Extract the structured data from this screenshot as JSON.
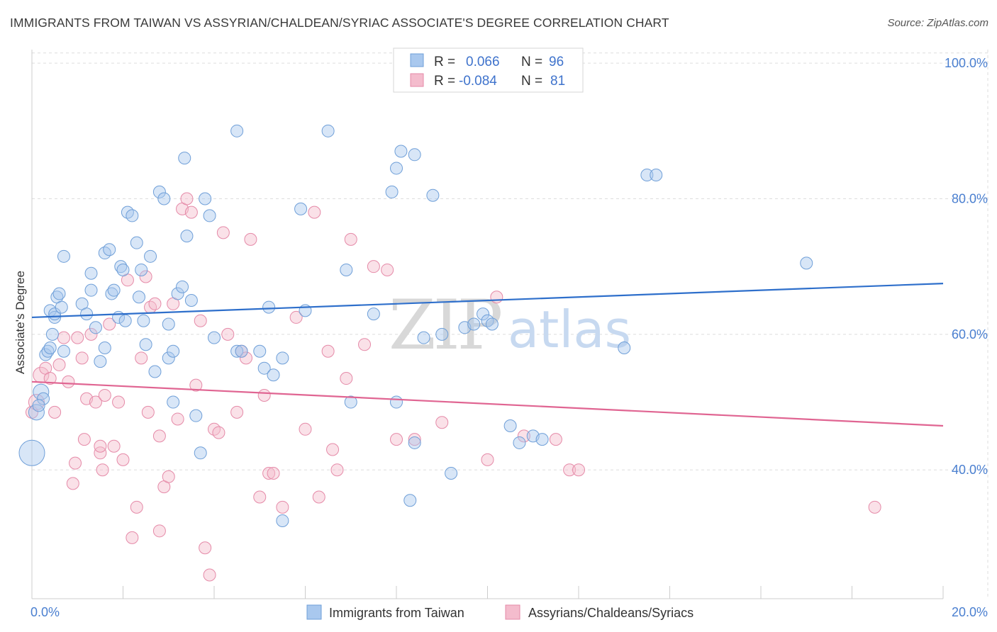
{
  "title": "IMMIGRANTS FROM TAIWAN VS ASSYRIAN/CHALDEAN/SYRIAC ASSOCIATE'S DEGREE CORRELATION CHART",
  "source": "Source: ZipAtlas.com",
  "watermark": {
    "zip": "ZIP",
    "atlas": "atlas"
  },
  "colors": {
    "blue_fill": "#a9c8ee",
    "blue_stroke": "#6f9fd8",
    "blue_line": "#2e6fcb",
    "pink_fill": "#f4bccd",
    "pink_stroke": "#e58aa8",
    "pink_line": "#e06592",
    "grid": "#dddddd",
    "tick_text": "#4a7fd0"
  },
  "legend": {
    "rows": [
      {
        "r_label": "R =",
        "r_value": "0.066",
        "n_label": "N =",
        "n_value": "96"
      },
      {
        "r_label": "R =",
        "r_value": "-0.084",
        "n_label": "N =",
        "n_value": "81"
      }
    ]
  },
  "chart_data": {
    "type": "scatter",
    "title": "IMMIGRANTS FROM TAIWAN VS ASSYRIAN/CHALDEAN/SYRIAC ASSOCIATE'S DEGREE CORRELATION CHART",
    "xlabel": "",
    "ylabel": "Associate's Degree",
    "xlim": [
      0,
      20
    ],
    "ylim": [
      21,
      102
    ],
    "x_tick_labels": [
      "0.0%",
      "20.0%"
    ],
    "y_ticks": [
      40,
      60,
      80,
      100
    ],
    "y_tick_labels": [
      "40.0%",
      "60.0%",
      "80.0%",
      "100.0%"
    ],
    "grid": true,
    "legend_position": "top-center",
    "series": [
      {
        "name": "Immigrants from Taiwan",
        "trend": {
          "x0": 0,
          "y0": 62.5,
          "x1": 20,
          "y1": 67.5
        },
        "points": [
          [
            0.0,
            42.5
          ],
          [
            0.1,
            48.5
          ],
          [
            0.2,
            51.5
          ],
          [
            0.25,
            50.5
          ],
          [
            0.3,
            57.0
          ],
          [
            0.35,
            57.5
          ],
          [
            0.4,
            58.0
          ],
          [
            0.4,
            63.5
          ],
          [
            0.45,
            60.0
          ],
          [
            0.5,
            62.5
          ],
          [
            0.5,
            63.0
          ],
          [
            0.55,
            65.5
          ],
          [
            0.6,
            66.0
          ],
          [
            0.65,
            64.0
          ],
          [
            0.7,
            71.5
          ],
          [
            0.7,
            57.5
          ],
          [
            1.1,
            64.5
          ],
          [
            1.2,
            63.0
          ],
          [
            1.3,
            66.5
          ],
          [
            1.3,
            69.0
          ],
          [
            1.4,
            61.0
          ],
          [
            1.5,
            56.0
          ],
          [
            1.6,
            58.0
          ],
          [
            1.6,
            72.0
          ],
          [
            1.7,
            72.5
          ],
          [
            1.75,
            66.0
          ],
          [
            1.8,
            66.5
          ],
          [
            1.9,
            62.5
          ],
          [
            1.95,
            70.0
          ],
          [
            2.0,
            69.5
          ],
          [
            2.05,
            62.0
          ],
          [
            2.1,
            78.0
          ],
          [
            2.2,
            77.5
          ],
          [
            2.3,
            73.5
          ],
          [
            2.35,
            65.5
          ],
          [
            2.4,
            69.5
          ],
          [
            2.45,
            62.0
          ],
          [
            2.5,
            58.5
          ],
          [
            2.6,
            71.5
          ],
          [
            2.7,
            54.5
          ],
          [
            2.8,
            81.0
          ],
          [
            2.9,
            80.0
          ],
          [
            3.0,
            56.5
          ],
          [
            3.1,
            57.5
          ],
          [
            3.1,
            50.0
          ],
          [
            3.2,
            66.0
          ],
          [
            3.3,
            67.0
          ],
          [
            3.35,
            86.0
          ],
          [
            3.4,
            74.5
          ],
          [
            3.5,
            65.0
          ],
          [
            3.6,
            48.0
          ],
          [
            3.7,
            42.5
          ],
          [
            3.8,
            80.0
          ],
          [
            3.9,
            77.5
          ],
          [
            4.0,
            59.5
          ],
          [
            4.5,
            90.0
          ],
          [
            4.5,
            57.5
          ],
          [
            4.6,
            57.5
          ],
          [
            5.0,
            57.5
          ],
          [
            5.1,
            55.0
          ],
          [
            5.2,
            64.0
          ],
          [
            5.3,
            54.0
          ],
          [
            5.5,
            56.5
          ],
          [
            5.5,
            32.5
          ],
          [
            5.9,
            78.5
          ],
          [
            6.0,
            63.5
          ],
          [
            6.5,
            90.0
          ],
          [
            6.9,
            69.5
          ],
          [
            7.0,
            50.0
          ],
          [
            7.5,
            63.0
          ],
          [
            7.9,
            81.0
          ],
          [
            8.0,
            84.5
          ],
          [
            8.0,
            50.0
          ],
          [
            8.1,
            87.0
          ],
          [
            8.3,
            35.5
          ],
          [
            8.4,
            86.5
          ],
          [
            8.4,
            44.0
          ],
          [
            8.6,
            59.5
          ],
          [
            8.8,
            80.5
          ],
          [
            9.0,
            60.0
          ],
          [
            9.2,
            39.5
          ],
          [
            9.5,
            61.0
          ],
          [
            9.7,
            61.5
          ],
          [
            9.9,
            63.0
          ],
          [
            10.0,
            62.0
          ],
          [
            10.1,
            61.5
          ],
          [
            10.5,
            46.5
          ],
          [
            10.7,
            44.0
          ],
          [
            11.0,
            45.0
          ],
          [
            11.2,
            44.5
          ],
          [
            13.0,
            58.0
          ],
          [
            13.5,
            83.5
          ],
          [
            13.7,
            83.5
          ],
          [
            17.0,
            70.5
          ],
          [
            0.15,
            49.5
          ],
          [
            3.0,
            61.5
          ]
        ]
      },
      {
        "name": "Assyrians/Chaldeans/Syriacs",
        "trend": {
          "x0": 0,
          "y0": 53.0,
          "x1": 20,
          "y1": 46.5
        },
        "points": [
          [
            0.0,
            48.5
          ],
          [
            0.1,
            50.0
          ],
          [
            0.2,
            54.0
          ],
          [
            0.3,
            55.0
          ],
          [
            0.4,
            53.5
          ],
          [
            0.5,
            48.5
          ],
          [
            0.6,
            55.5
          ],
          [
            0.7,
            59.5
          ],
          [
            0.8,
            53.0
          ],
          [
            0.9,
            38.0
          ],
          [
            0.95,
            41.0
          ],
          [
            1.0,
            59.5
          ],
          [
            1.1,
            56.5
          ],
          [
            1.15,
            44.5
          ],
          [
            1.2,
            50.5
          ],
          [
            1.3,
            60.0
          ],
          [
            1.4,
            50.0
          ],
          [
            1.5,
            42.5
          ],
          [
            1.5,
            43.5
          ],
          [
            1.55,
            40.0
          ],
          [
            1.6,
            51.0
          ],
          [
            1.7,
            61.5
          ],
          [
            1.8,
            43.5
          ],
          [
            1.9,
            50.0
          ],
          [
            2.0,
            41.5
          ],
          [
            2.1,
            68.0
          ],
          [
            2.2,
            30.0
          ],
          [
            2.3,
            34.5
          ],
          [
            2.4,
            56.5
          ],
          [
            2.5,
            68.5
          ],
          [
            2.55,
            48.5
          ],
          [
            2.6,
            64.0
          ],
          [
            2.7,
            64.5
          ],
          [
            2.8,
            45.0
          ],
          [
            2.9,
            37.5
          ],
          [
            3.0,
            39.0
          ],
          [
            3.1,
            64.5
          ],
          [
            3.2,
            47.5
          ],
          [
            3.3,
            78.5
          ],
          [
            3.4,
            80.0
          ],
          [
            3.5,
            78.0
          ],
          [
            3.6,
            52.5
          ],
          [
            3.7,
            62.0
          ],
          [
            3.8,
            28.5
          ],
          [
            3.9,
            24.5
          ],
          [
            4.0,
            46.0
          ],
          [
            4.1,
            45.5
          ],
          [
            4.2,
            75.0
          ],
          [
            4.3,
            60.0
          ],
          [
            4.5,
            48.5
          ],
          [
            4.6,
            57.5
          ],
          [
            4.7,
            56.5
          ],
          [
            4.8,
            74.0
          ],
          [
            5.0,
            36.0
          ],
          [
            5.1,
            51.0
          ],
          [
            5.2,
            39.5
          ],
          [
            5.3,
            39.5
          ],
          [
            5.5,
            34.5
          ],
          [
            5.8,
            62.5
          ],
          [
            6.0,
            46.0
          ],
          [
            6.2,
            78.0
          ],
          [
            6.3,
            36.0
          ],
          [
            6.5,
            57.5
          ],
          [
            6.6,
            43.0
          ],
          [
            6.7,
            40.0
          ],
          [
            6.9,
            53.5
          ],
          [
            7.0,
            74.0
          ],
          [
            7.3,
            58.5
          ],
          [
            7.5,
            70.0
          ],
          [
            7.8,
            69.5
          ],
          [
            8.0,
            44.5
          ],
          [
            8.4,
            44.5
          ],
          [
            9.0,
            47.0
          ],
          [
            10.0,
            41.5
          ],
          [
            10.2,
            65.5
          ],
          [
            10.8,
            45.0
          ],
          [
            11.5,
            44.5
          ],
          [
            11.8,
            40.0
          ],
          [
            12.0,
            40.0
          ],
          [
            18.5,
            34.5
          ],
          [
            2.8,
            31.0
          ]
        ]
      }
    ]
  },
  "bottom_legend": [
    {
      "label": "Immigrants from Taiwan"
    },
    {
      "label": "Assyrians/Chaldeans/Syriacs"
    }
  ]
}
